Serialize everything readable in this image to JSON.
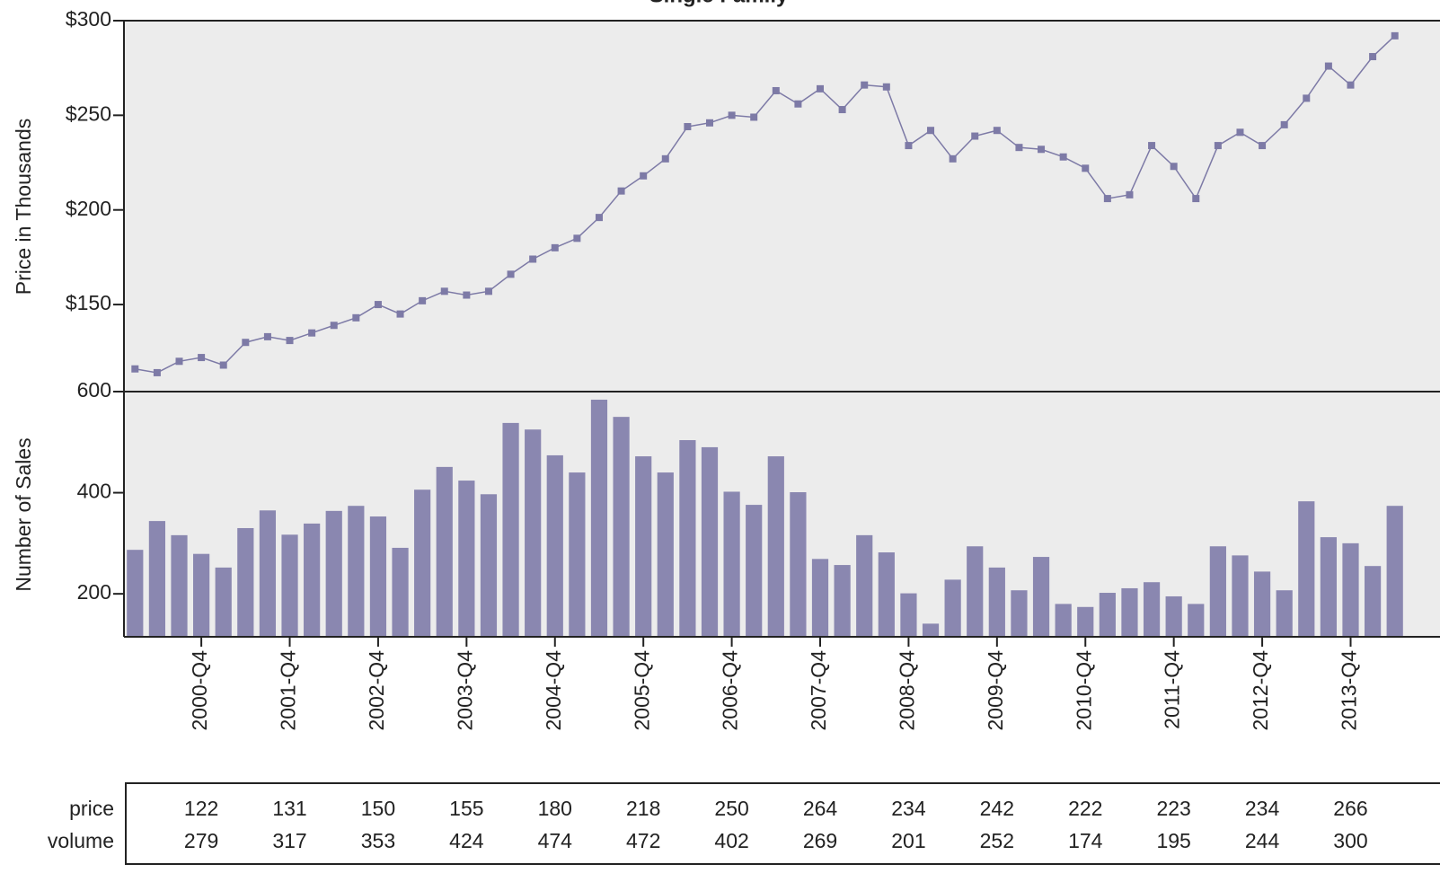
{
  "chart_data": [
    {
      "type": "line",
      "title": "Single Family",
      "ylabel": "Price in Thousands",
      "color": "#7d7aa6",
      "values": [
        116,
        114,
        120,
        122,
        118,
        130,
        133,
        131,
        135,
        139,
        143,
        150,
        145,
        152,
        157,
        155,
        157,
        166,
        174,
        180,
        185,
        196,
        210,
        218,
        227,
        244,
        246,
        250,
        249,
        263,
        256,
        264,
        253,
        266,
        265,
        234,
        242,
        227,
        239,
        242,
        233,
        232,
        228,
        222,
        206,
        208,
        234,
        223,
        206,
        234,
        241,
        234,
        245,
        259,
        276,
        266,
        281,
        292
      ],
      "ylim": [
        104,
        300
      ],
      "yticks": [
        {
          "value": 150,
          "label": "$150"
        },
        {
          "value": 200,
          "label": "$200"
        },
        {
          "value": 250,
          "label": "$250"
        },
        {
          "value": 300,
          "label": "$300"
        }
      ]
    },
    {
      "type": "bar",
      "ylabel": "Number of Sales",
      "color": "#8a87b0",
      "categories": [
        null,
        null,
        null,
        "2000-Q4",
        null,
        null,
        null,
        "2001-Q4",
        null,
        null,
        null,
        "2002-Q4",
        null,
        null,
        null,
        "2003-Q4",
        null,
        null,
        null,
        "2004-Q4",
        null,
        null,
        null,
        "2005-Q4",
        null,
        null,
        null,
        "2006-Q4",
        null,
        null,
        null,
        "2007-Q4",
        null,
        null,
        null,
        "2008-Q4",
        null,
        null,
        null,
        "2009-Q4",
        null,
        null,
        null,
        "2010-Q4",
        null,
        null,
        null,
        "2011-Q4",
        null,
        null,
        null,
        "2012-Q4",
        null,
        null,
        null,
        "2013-Q4",
        null,
        null
      ],
      "values": [
        287,
        344,
        316,
        279,
        252,
        330,
        365,
        317,
        339,
        364,
        374,
        353,
        291,
        406,
        451,
        424,
        397,
        538,
        525,
        474,
        440,
        584,
        550,
        472,
        440,
        504,
        490,
        402,
        376,
        472,
        401,
        269,
        257,
        316,
        282,
        201,
        141,
        228,
        294,
        252,
        207,
        273,
        180,
        174,
        202,
        211,
        223,
        195,
        180,
        294,
        276,
        244,
        207,
        383,
        312,
        300,
        255,
        374
      ],
      "ylim": [
        115,
        600
      ],
      "yticks": [
        200,
        400,
        600
      ],
      "table": {
        "rows": [
          {
            "label": "price",
            "values": [
              122,
              131,
              150,
              155,
              180,
              218,
              250,
              264,
              234,
              242,
              222,
              223,
              234,
              266
            ]
          },
          {
            "label": "volume",
            "values": [
              279,
              317,
              353,
              424,
              474,
              472,
              402,
              269,
              201,
              252,
              174,
              195,
              244,
              300
            ]
          }
        ]
      }
    }
  ]
}
